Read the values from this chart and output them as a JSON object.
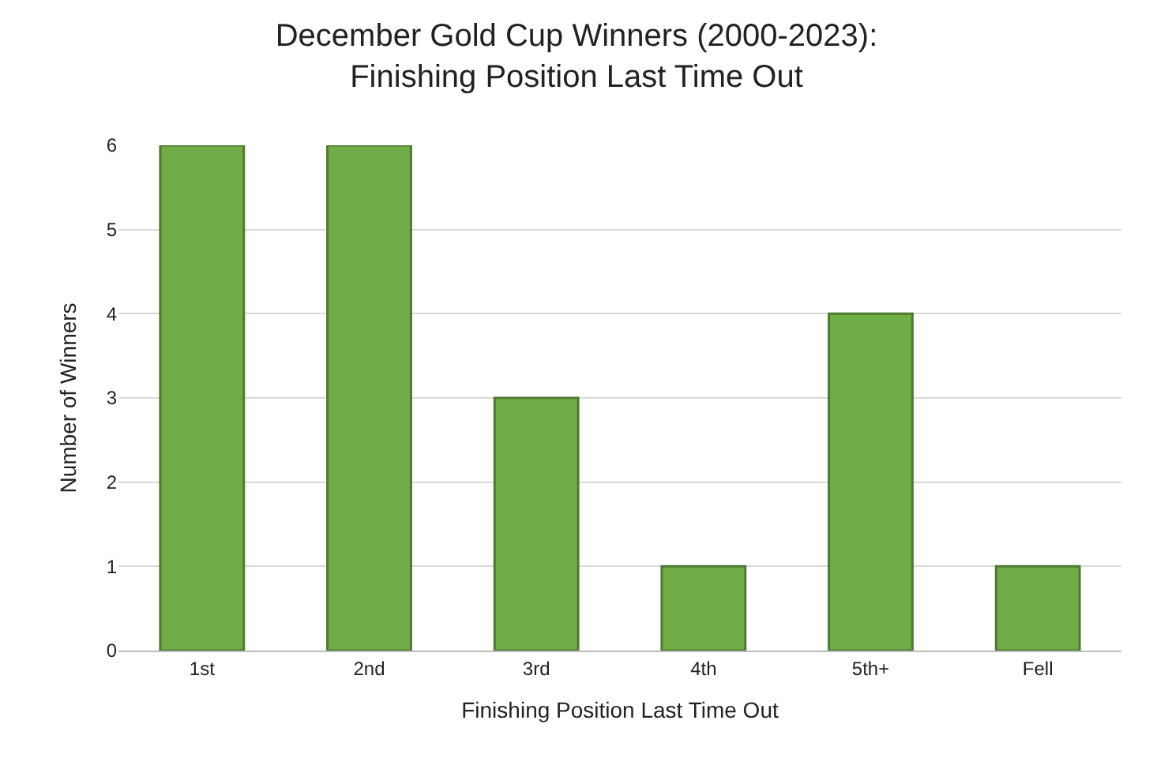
{
  "chart_data": {
    "type": "bar",
    "title": "December Gold Cup Winners (2000-2023):\nFinishing Position Last Time Out",
    "xlabel": "Finishing Position Last Time Out",
    "ylabel": "Number of Winners",
    "categories": [
      "1st",
      "2nd",
      "3rd",
      "4th",
      "5th+",
      "Fell"
    ],
    "values": [
      6,
      6,
      3,
      1,
      4,
      1
    ],
    "color": "#70ad47",
    "ylim": [
      0,
      6
    ],
    "yticks": [
      0,
      1,
      2,
      3,
      4,
      5,
      6
    ],
    "grid": "y"
  }
}
